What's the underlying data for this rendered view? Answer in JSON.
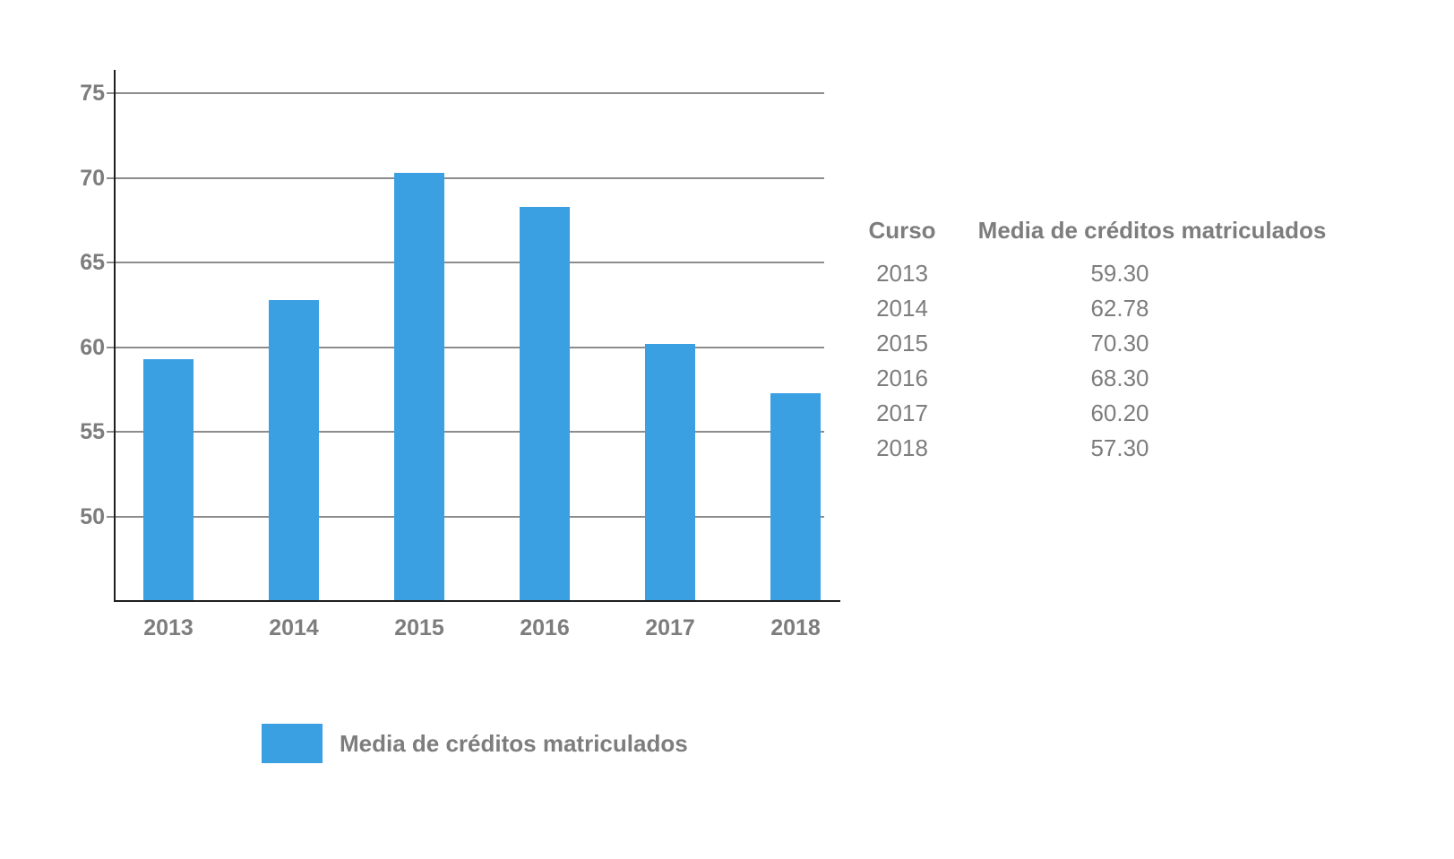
{
  "colors": {
    "bar": "#3BA0E2",
    "grid": "#8C8C8C",
    "axis": "#1F1F1F",
    "text": "#7D7D7D"
  },
  "chart_data": {
    "type": "bar",
    "title": "",
    "categories": [
      "2013",
      "2014",
      "2015",
      "2016",
      "2017",
      "2018"
    ],
    "series": [
      {
        "name": "Media de créditos matriculados",
        "values": [
          59.3,
          62.78,
          70.3,
          68.3,
          60.2,
          57.3
        ]
      }
    ],
    "xlabel": "",
    "ylabel": "",
    "ylim": [
      45,
      76.4
    ],
    "yticks": [
      50,
      55,
      60,
      65,
      70,
      75
    ],
    "grid": true,
    "legend_position": "bottom-left",
    "bar_color": "#3BA0E2"
  },
  "legend": {
    "label": "Media de créditos matriculados"
  },
  "table": {
    "headers": [
      "Curso",
      "Media de créditos matriculados"
    ],
    "rows": [
      {
        "curso": "2013",
        "media": "59.30"
      },
      {
        "curso": "2014",
        "media": "62.78"
      },
      {
        "curso": "2015",
        "media": "70.30"
      },
      {
        "curso": "2016",
        "media": "68.30"
      },
      {
        "curso": "2017",
        "media": "60.20"
      },
      {
        "curso": "2018",
        "media": "57.30"
      }
    ]
  }
}
